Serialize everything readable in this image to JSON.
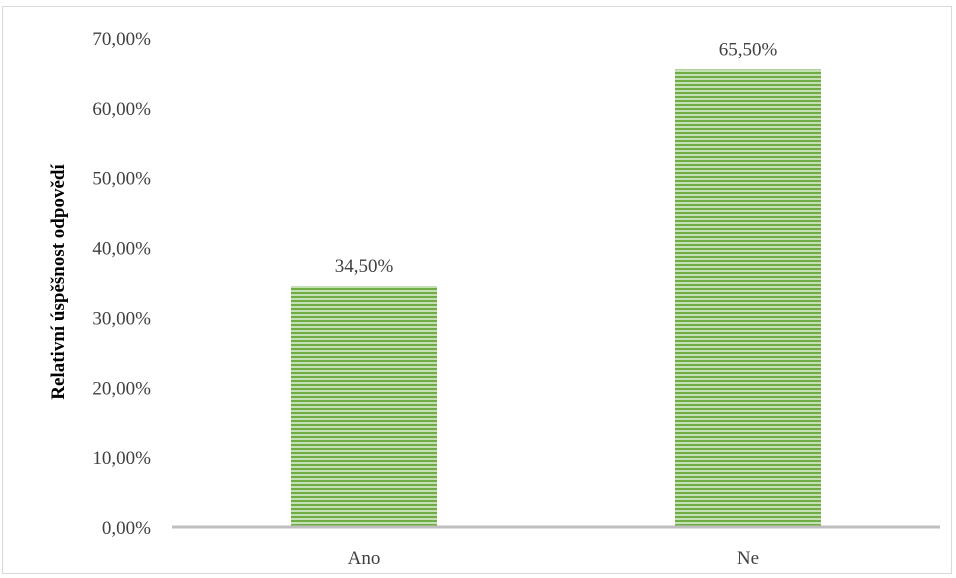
{
  "chart_data": {
    "type": "bar",
    "categories": [
      "Ano",
      "Ne"
    ],
    "values": [
      34.5,
      65.5
    ],
    "data_labels": [
      "34,50%",
      "65,50%"
    ],
    "title": "",
    "xlabel": "",
    "ylabel": "Relativní úspěšnost odpovědí",
    "ylim": [
      0,
      70
    ],
    "y_ticks": [
      0,
      10,
      20,
      30,
      40,
      50,
      60,
      70
    ],
    "y_tick_labels": [
      "0,00%",
      "10,00%",
      "20,00%",
      "30,00%",
      "40,00%",
      "50,00%",
      "60,00%",
      "70,00%"
    ],
    "grid": false,
    "legend": "none",
    "bar_color": "#70ad47",
    "bar_stripe_color": "#c5e0b4",
    "axis_color": "#bfbfbf"
  }
}
